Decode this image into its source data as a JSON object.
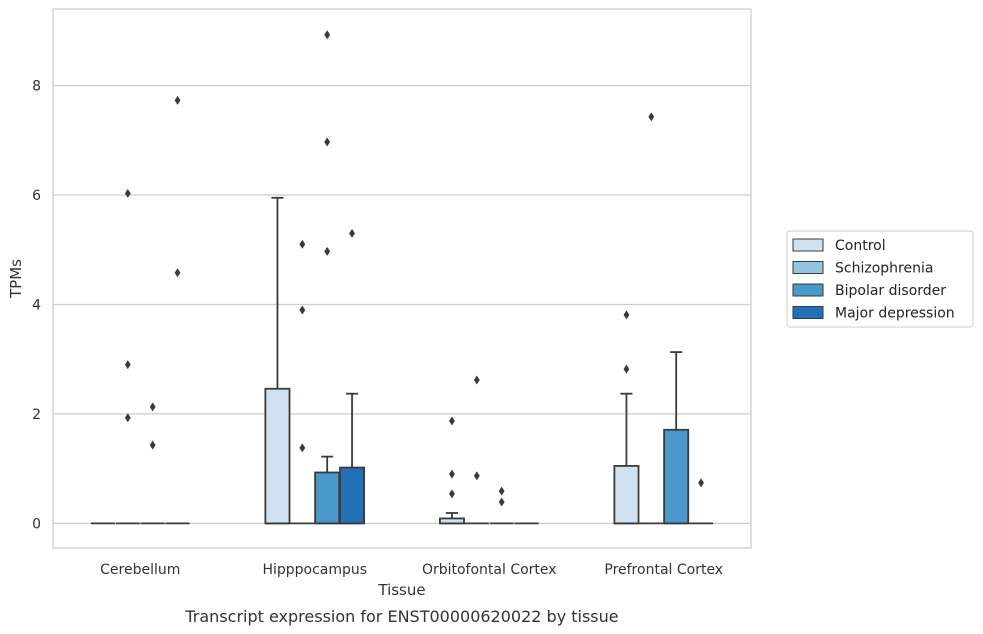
{
  "caption": "Transcript expression for ENST00000620022 by tissue",
  "chart_data": {
    "type": "box",
    "xlabel": "Tissue",
    "ylabel": "TPMs",
    "ylim": [
      -0.45,
      9.4
    ],
    "yticks": [
      0,
      2,
      4,
      6,
      8
    ],
    "grid": "horizontal",
    "legend_placement": "right",
    "categories": [
      "Cerebellum",
      "Hipppocampus",
      "Orbitofontal Cortex",
      "Prefrontal Cortex"
    ],
    "series": [
      {
        "name": "Control",
        "color": "#d0e1f2"
      },
      {
        "name": "Schizophrenia",
        "color": "#94c4df"
      },
      {
        "name": "Bipolar disorder",
        "color": "#4a98c9"
      },
      {
        "name": "Major depression",
        "color": "#2270b5"
      }
    ],
    "boxes": [
      [
        {
          "q1": 0,
          "median": 0,
          "q3": 0,
          "whisker_low": 0,
          "whisker_high": 0,
          "outliers": []
        },
        {
          "q1": 0,
          "median": 0,
          "q3": 0,
          "whisker_low": 0,
          "whisker_high": 0,
          "outliers": [
            6.03,
            2.9,
            1.93
          ]
        },
        {
          "q1": 0,
          "median": 0,
          "q3": 0,
          "whisker_low": 0,
          "whisker_high": 0,
          "outliers": [
            2.13,
            1.43
          ]
        },
        {
          "q1": 0,
          "median": 0,
          "q3": 0,
          "whisker_low": 0,
          "whisker_high": 0,
          "outliers": [
            7.73,
            4.58
          ]
        }
      ],
      [
        {
          "q1": 0,
          "median": 0,
          "q3": 2.46,
          "whisker_low": 0,
          "whisker_high": 5.95,
          "outliers": []
        },
        {
          "q1": 0,
          "median": 0,
          "q3": 0,
          "whisker_low": 0,
          "whisker_high": 0,
          "outliers": [
            5.1,
            3.9,
            1.38
          ]
        },
        {
          "q1": 0,
          "median": 0,
          "q3": 0.93,
          "whisker_low": 0,
          "whisker_high": 1.22,
          "outliers": [
            8.93,
            6.97,
            4.97
          ]
        },
        {
          "q1": 0,
          "median": 0,
          "q3": 1.02,
          "whisker_low": 0,
          "whisker_high": 2.37,
          "outliers": [
            5.3
          ]
        }
      ],
      [
        {
          "q1": 0,
          "median": 0,
          "q3": 0.09,
          "whisker_low": 0,
          "whisker_high": 0.19,
          "outliers": [
            1.87,
            0.9,
            0.54
          ]
        },
        {
          "q1": 0,
          "median": 0,
          "q3": 0,
          "whisker_low": 0,
          "whisker_high": 0,
          "outliers": [
            2.62,
            0.87
          ]
        },
        {
          "q1": 0,
          "median": 0,
          "q3": 0,
          "whisker_low": 0,
          "whisker_high": 0,
          "outliers": [
            0.59,
            0.39
          ]
        },
        {
          "q1": 0,
          "median": 0,
          "q3": 0,
          "whisker_low": 0,
          "whisker_high": 0,
          "outliers": []
        }
      ],
      [
        {
          "q1": 0,
          "median": 0,
          "q3": 1.05,
          "whisker_low": 0,
          "whisker_high": 2.37,
          "outliers": [
            3.81,
            2.82
          ]
        },
        {
          "q1": 0,
          "median": 0,
          "q3": 0,
          "whisker_low": 0,
          "whisker_high": 0,
          "outliers": [
            7.43
          ]
        },
        {
          "q1": 0,
          "median": 0,
          "q3": 1.71,
          "whisker_low": 0,
          "whisker_high": 3.13,
          "outliers": []
        },
        {
          "q1": 0,
          "median": 0,
          "q3": 0,
          "whisker_low": 0,
          "whisker_high": 0,
          "outliers": [
            0.74
          ]
        }
      ]
    ]
  }
}
